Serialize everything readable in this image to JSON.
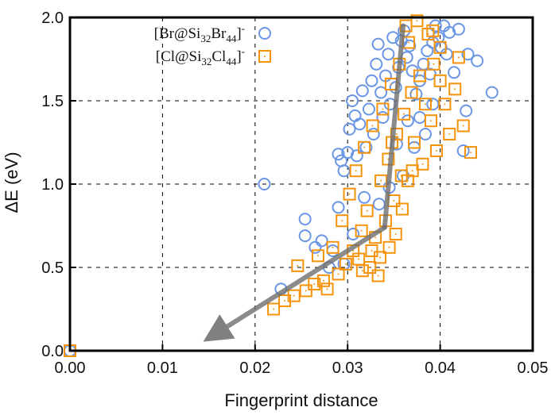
{
  "chart_data": {
    "type": "scatter",
    "xlabel": "Fingerprint distance",
    "ylabel": "ΔE (eV)",
    "xlim": [
      0,
      0.05
    ],
    "ylim": [
      0,
      2.0
    ],
    "x_ticks": [
      "0.00",
      "0.01",
      "0.02",
      "0.03",
      "0.04",
      "0.05"
    ],
    "y_ticks": [
      "0.0",
      "0.5",
      "1.0",
      "1.5",
      "2.0"
    ],
    "grid": "dashed",
    "legend_position": "top-left",
    "legend": [
      {
        "name": "[Br@Si32Br44]-",
        "parts": [
          "[Br@Si",
          "32",
          "Br",
          "44",
          "]",
          "-"
        ],
        "marker": "circle",
        "color": "#6a96e6"
      },
      {
        "name": "[Cl@Si32Cl44]-",
        "parts": [
          "[Cl@Si",
          "32",
          "Cl",
          "44",
          "]",
          "-"
        ],
        "marker": "square",
        "color": "#f5930b"
      }
    ],
    "series": [
      {
        "name": "[Br@Si32Br44]-",
        "marker": "circle",
        "color": "#6a96e6",
        "points": [
          [
            0.0,
            0.0
          ],
          [
            0.021,
            1.0
          ],
          [
            0.0228,
            0.37
          ],
          [
            0.0254,
            0.79
          ],
          [
            0.0254,
            0.69
          ],
          [
            0.0265,
            0.62
          ],
          [
            0.0272,
            0.66
          ],
          [
            0.0284,
            0.6
          ],
          [
            0.029,
            0.86
          ],
          [
            0.0293,
            1.14
          ],
          [
            0.029,
            1.18
          ],
          [
            0.0296,
            1.08
          ],
          [
            0.03,
            1.19
          ],
          [
            0.0302,
            1.33
          ],
          [
            0.0305,
            1.5
          ],
          [
            0.0308,
            1.41
          ],
          [
            0.031,
            1.17
          ],
          [
            0.0313,
            1.36
          ],
          [
            0.0316,
            1.56
          ],
          [
            0.032,
            1.22
          ],
          [
            0.0323,
            1.45
          ],
          [
            0.0326,
            1.62
          ],
          [
            0.0328,
            1.3
          ],
          [
            0.0331,
            1.72
          ],
          [
            0.0333,
            1.84
          ],
          [
            0.0336,
            1.55
          ],
          [
            0.0338,
            1.4
          ],
          [
            0.0341,
            1.65
          ],
          [
            0.0344,
            1.78
          ],
          [
            0.0346,
            1.48
          ],
          [
            0.0349,
            1.88
          ],
          [
            0.0352,
            1.58
          ],
          [
            0.0355,
            1.7
          ],
          [
            0.0358,
            1.86
          ],
          [
            0.0361,
            1.92
          ],
          [
            0.0364,
            1.76
          ],
          [
            0.0367,
            1.83
          ],
          [
            0.037,
            1.68
          ],
          [
            0.0374,
            1.54
          ],
          [
            0.0378,
            1.62
          ],
          [
            0.0382,
            1.72
          ],
          [
            0.0386,
            1.8
          ],
          [
            0.0389,
            1.66
          ],
          [
            0.0392,
            1.85
          ],
          [
            0.0395,
            1.95
          ],
          [
            0.0398,
            1.88
          ],
          [
            0.0401,
            1.82
          ],
          [
            0.0404,
            1.95
          ],
          [
            0.0407,
            1.78
          ],
          [
            0.041,
            1.91
          ],
          [
            0.0415,
            1.67
          ],
          [
            0.042,
            1.93
          ],
          [
            0.0425,
            1.2
          ],
          [
            0.0428,
            1.44
          ],
          [
            0.043,
            1.78
          ],
          [
            0.044,
            1.74
          ],
          [
            0.0456,
            1.55
          ],
          [
            0.0365,
            1.38
          ],
          [
            0.0372,
            1.22
          ],
          [
            0.036,
            1.05
          ],
          [
            0.0345,
            0.98
          ],
          [
            0.0334,
            0.88
          ],
          [
            0.0318,
            0.92
          ],
          [
            0.0306,
            0.7
          ],
          [
            0.0296,
            0.52
          ],
          [
            0.028,
            0.5
          ],
          [
            0.0384,
            1.3
          ],
          [
            0.0392,
            1.48
          ],
          [
            0.0378,
            1.4
          ],
          [
            0.0353,
            1.24
          ]
        ]
      },
      {
        "name": "[Cl@Si32Cl44]-",
        "marker": "square",
        "color": "#f5930b",
        "points": [
          [
            0.0,
            0.0
          ],
          [
            0.022,
            0.25
          ],
          [
            0.0232,
            0.3
          ],
          [
            0.0242,
            0.33
          ],
          [
            0.0246,
            0.51
          ],
          [
            0.0255,
            0.36
          ],
          [
            0.0264,
            0.4
          ],
          [
            0.0268,
            0.57
          ],
          [
            0.0274,
            0.42
          ],
          [
            0.0278,
            0.37
          ],
          [
            0.0284,
            0.62
          ],
          [
            0.029,
            0.46
          ],
          [
            0.0294,
            0.78
          ],
          [
            0.0298,
            0.52
          ],
          [
            0.0302,
            0.94
          ],
          [
            0.0306,
            0.6
          ],
          [
            0.0309,
            1.08
          ],
          [
            0.0312,
            0.55
          ],
          [
            0.0315,
            0.72
          ],
          [
            0.0318,
            1.22
          ],
          [
            0.0321,
            0.84
          ],
          [
            0.0324,
            0.5
          ],
          [
            0.0327,
            1.35
          ],
          [
            0.033,
            0.68
          ],
          [
            0.0333,
            0.45
          ],
          [
            0.0336,
            1.02
          ],
          [
            0.0338,
            1.45
          ],
          [
            0.0341,
            0.78
          ],
          [
            0.0344,
            1.15
          ],
          [
            0.0347,
            1.6
          ],
          [
            0.035,
            0.9
          ],
          [
            0.0353,
            1.3
          ],
          [
            0.0356,
            1.72
          ],
          [
            0.0358,
            1.05
          ],
          [
            0.0361,
            1.42
          ],
          [
            0.0363,
            1.95
          ],
          [
            0.0366,
            1.85
          ],
          [
            0.0369,
            1.55
          ],
          [
            0.0372,
            1.25
          ],
          [
            0.0375,
            1.98
          ],
          [
            0.0378,
            1.65
          ],
          [
            0.0381,
            1.12
          ],
          [
            0.0384,
            1.48
          ],
          [
            0.0387,
            1.9
          ],
          [
            0.039,
            1.38
          ],
          [
            0.0393,
            1.72
          ],
          [
            0.0396,
            1.2
          ],
          [
            0.04,
            1.62
          ],
          [
            0.0405,
            1.48
          ],
          [
            0.041,
            1.3
          ],
          [
            0.0416,
            1.57
          ],
          [
            0.042,
            1.76
          ],
          [
            0.0425,
            1.35
          ],
          [
            0.0433,
            1.19
          ],
          [
            0.04,
            1.82
          ],
          [
            0.0392,
            1.92
          ],
          [
            0.0345,
            0.62
          ],
          [
            0.0335,
            0.56
          ],
          [
            0.0326,
            0.6
          ],
          [
            0.0316,
            0.48
          ],
          [
            0.0359,
            0.85
          ],
          [
            0.0352,
            0.7
          ],
          [
            0.0348,
            1.25
          ],
          [
            0.037,
            1.08
          ],
          [
            0.0365,
            1.02
          ]
        ]
      }
    ],
    "arrows": [
      {
        "from": [
          0.036,
          1.95
        ],
        "to": [
          0.034,
          0.74
        ]
      },
      {
        "from": [
          0.034,
          0.74
        ],
        "to": [
          0.0157,
          0.1
        ]
      }
    ]
  }
}
